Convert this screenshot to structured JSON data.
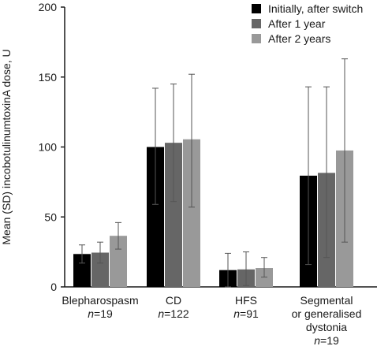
{
  "chart_data": {
    "type": "bar",
    "ylabel": "Mean (SD) incobotulinumtoxinA dose, U",
    "ylim": [
      0,
      200
    ],
    "yticks": [
      0,
      50,
      100,
      150,
      200
    ],
    "categories": [
      {
        "label_lines": [
          "Blepharospasm"
        ],
        "n_prefix": "n",
        "n_value": "=19"
      },
      {
        "label_lines": [
          "CD"
        ],
        "n_prefix": "n",
        "n_value": "=122"
      },
      {
        "label_lines": [
          "HFS"
        ],
        "n_prefix": "n",
        "n_value": "=91"
      },
      {
        "label_lines": [
          "Segmental",
          "or generalised",
          "dystonia"
        ],
        "n_prefix": "n",
        "n_value": "=19"
      }
    ],
    "series": [
      {
        "name": "Initially, after switch",
        "color": "#000000",
        "values": [
          23.5,
          100,
          12,
          79.5
        ],
        "err_low": [
          17,
          59,
          0,
          16
        ],
        "err_high": [
          30,
          142,
          24,
          143
        ]
      },
      {
        "name": "After 1 year",
        "color": "#666666",
        "values": [
          24.5,
          103,
          12.5,
          81.5
        ],
        "err_low": [
          17,
          61,
          1,
          21
        ],
        "err_high": [
          32,
          145,
          25,
          143
        ]
      },
      {
        "name": "After 2 years",
        "color": "#999999",
        "values": [
          36.5,
          105.5,
          13.5,
          97.5
        ],
        "err_low": [
          27,
          57,
          7,
          32
        ],
        "err_high": [
          46,
          152,
          21,
          163
        ]
      }
    ],
    "legend_position": "top-right"
  }
}
